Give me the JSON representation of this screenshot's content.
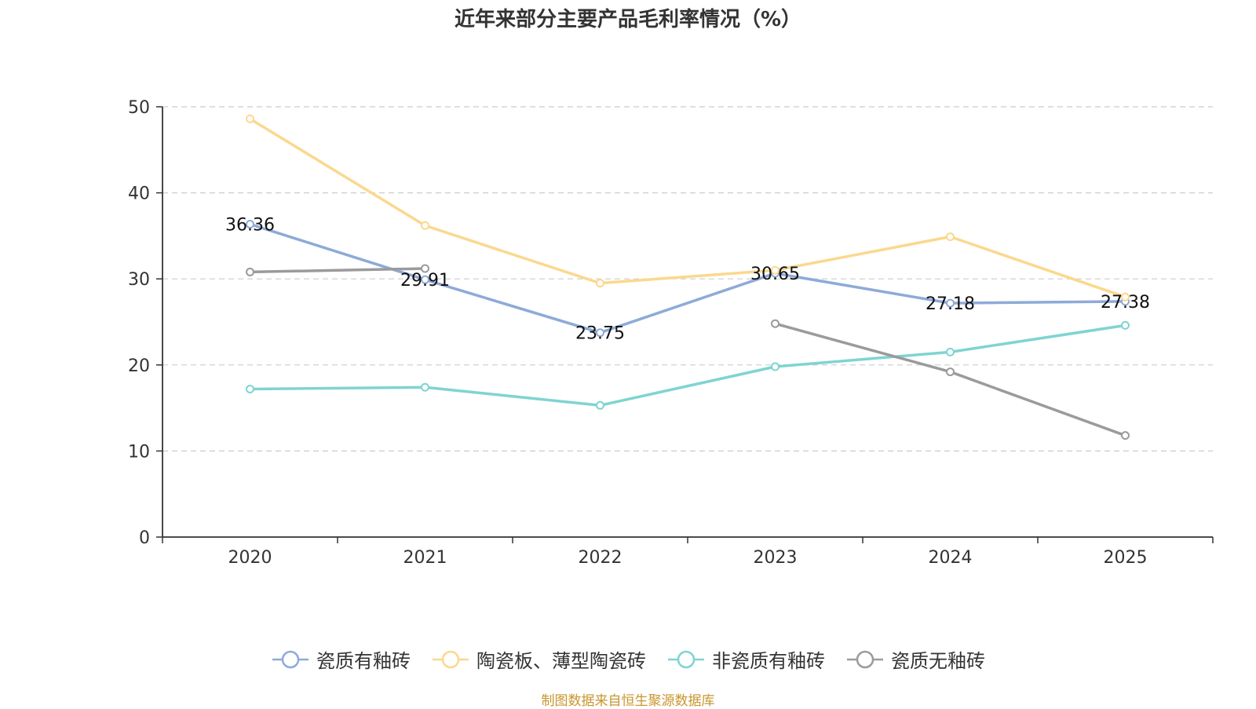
{
  "title": "近年来部分主要产品毛利率情况（%）",
  "source": "制图数据来自恒生聚源数据库",
  "colors": {
    "axis": "#333333",
    "grid": "#cccccc",
    "series": [
      "#8eaad8",
      "#fbd88e",
      "#7fd4d2",
      "#9b9b9b"
    ]
  },
  "chart_data": {
    "type": "line",
    "title": "近年来部分主要产品毛利率情况（%）",
    "xlabel": "",
    "ylabel": "",
    "categories": [
      "2020",
      "2021",
      "2022",
      "2023",
      "2024",
      "2025"
    ],
    "ylim": [
      0,
      50
    ],
    "yticks": [
      0,
      10,
      20,
      30,
      40,
      50
    ],
    "grid": true,
    "legend_position": "bottom",
    "series": [
      {
        "name": "瓷质有釉砖",
        "values": [
          36.36,
          29.91,
          23.75,
          30.65,
          27.18,
          27.38
        ],
        "show_labels": true
      },
      {
        "name": "陶瓷板、薄型陶瓷砖",
        "values": [
          48.6,
          36.2,
          29.5,
          31.0,
          34.9,
          27.9
        ],
        "show_labels": false
      },
      {
        "name": "非瓷质有釉砖",
        "values": [
          17.2,
          17.4,
          15.3,
          19.8,
          21.5,
          24.6
        ],
        "show_labels": false
      },
      {
        "name": "瓷质无釉砖",
        "values": [
          30.8,
          31.2,
          null,
          24.8,
          19.2,
          11.8
        ],
        "show_labels": false
      }
    ]
  }
}
